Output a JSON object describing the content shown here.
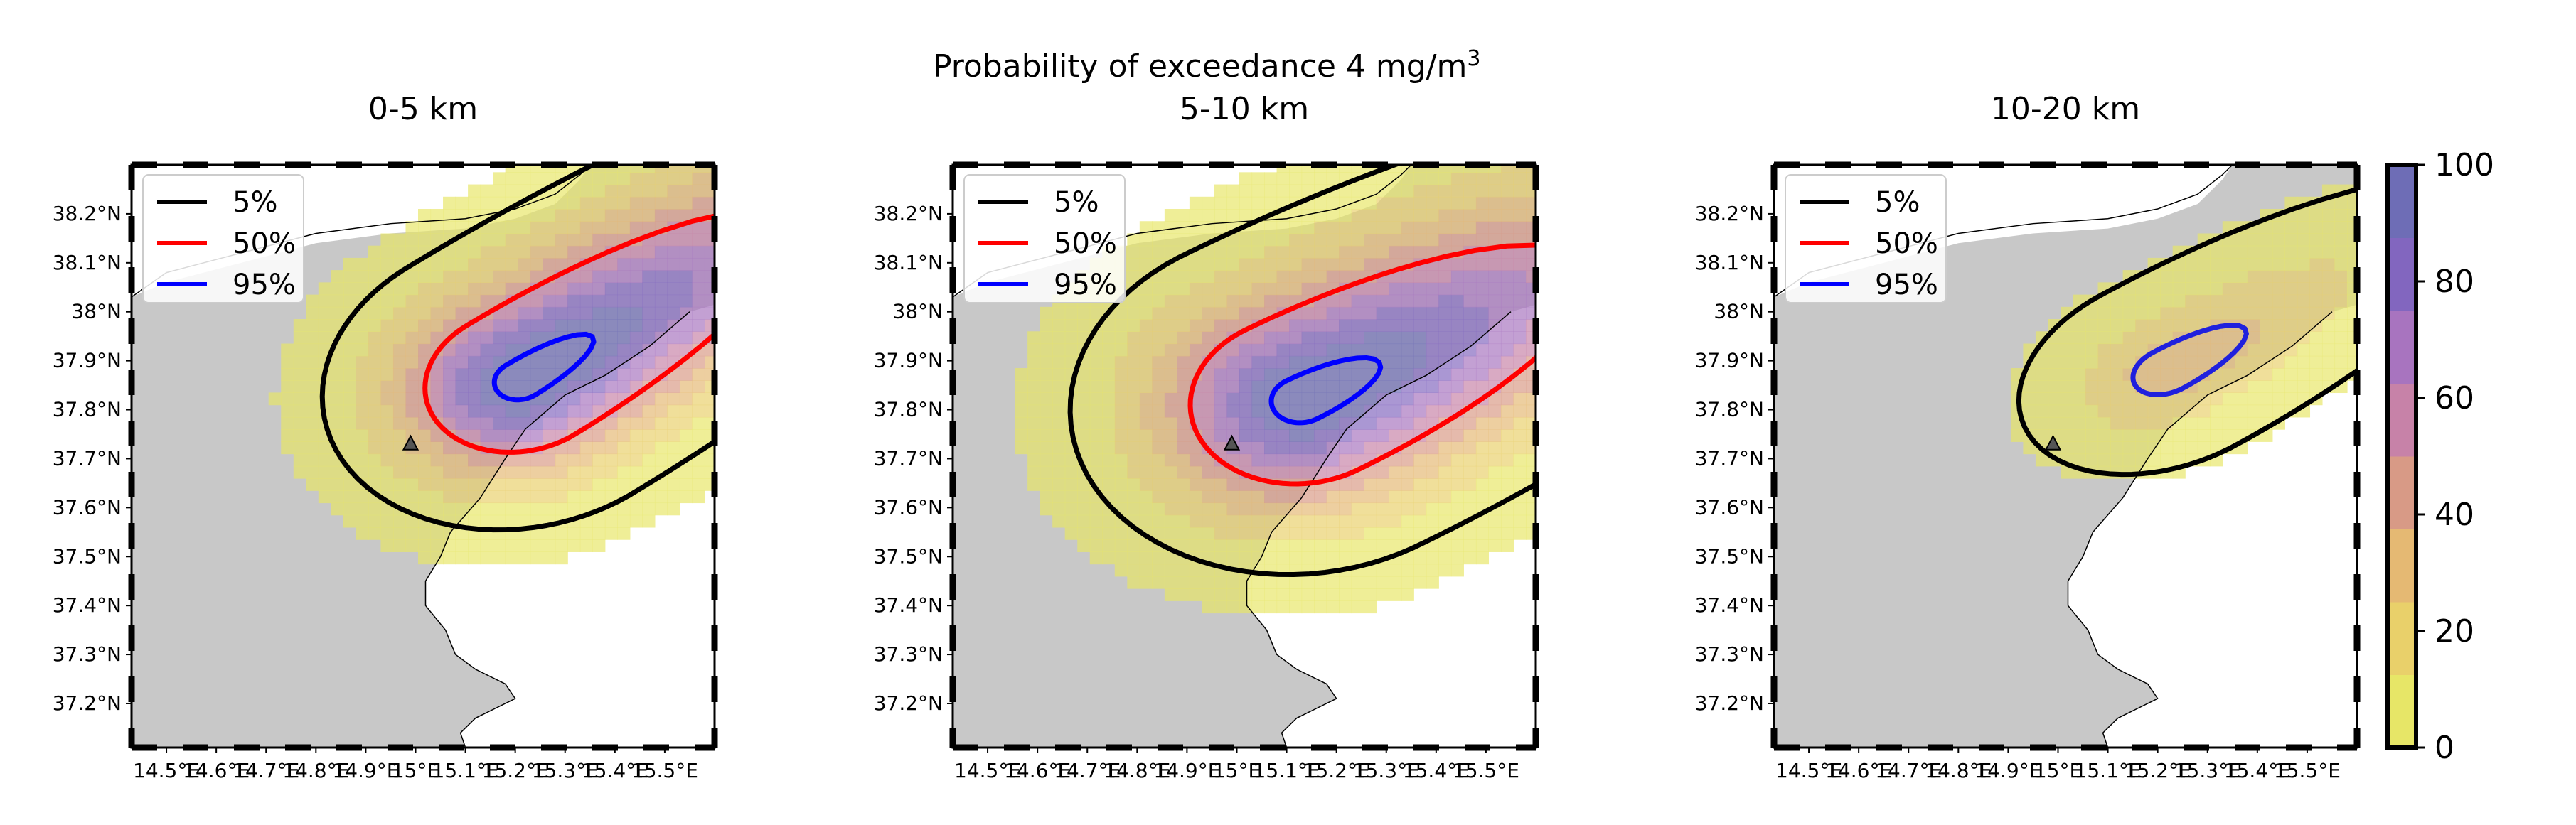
{
  "figure": {
    "suptitle_main": "Probability of exceedance 4 mg/m",
    "suptitle_sup": "3"
  },
  "colorbar": {
    "ticks": [
      "0",
      "20",
      "40",
      "60",
      "80",
      "100"
    ],
    "range": [
      0,
      100
    ],
    "colors": [
      "#e7e667",
      "#e9d06a",
      "#e5b973",
      "#d89a86",
      "#c782a8",
      "#a874bf",
      "#8266bf",
      "#6e6db6"
    ]
  },
  "legend": [
    "5%",
    "50%",
    "95%"
  ],
  "legend_colors": [
    "#000000",
    "#ff0000",
    "#0000ff"
  ],
  "lat_ticks": [
    "38.2°N",
    "38.1°N",
    "38°N",
    "37.9°N",
    "37.8°N",
    "37.7°N",
    "37.6°N",
    "37.5°N",
    "37.4°N",
    "37.3°N",
    "37.2°N"
  ],
  "lon_ticks": [
    "14.5°E",
    "14.6°E",
    "14.7°E",
    "14.8°E",
    "14.9°E",
    "15°E",
    "15.1°E",
    "15.2°E",
    "15.3°E",
    "15.4°E",
    "15.5°E"
  ],
  "land_color": "#c8c8c8",
  "vent_marker": "triangle-icon",
  "chart_data": [
    {
      "type": "heatmap",
      "title": "0-5 km",
      "xlim": [
        14.43,
        15.6
      ],
      "ylim": [
        37.11,
        38.3
      ],
      "vent": [
        14.99,
        37.73
      ],
      "field": {
        "center": [
          15.21,
          37.86
        ],
        "axis_deg": 38,
        "radius_along_back": 0.28,
        "radius_along_front": 0.95,
        "radius_across": 0.25,
        "peak": 100
      },
      "contours": [
        {
          "level": "5%",
          "color": "#000000"
        },
        {
          "level": "50%",
          "color": "#ff0000"
        },
        {
          "level": "95%",
          "color": "#0000ff"
        }
      ]
    },
    {
      "type": "heatmap",
      "title": "5-10 km",
      "xlim": [
        14.43,
        15.6
      ],
      "ylim": [
        37.11,
        38.3
      ],
      "vent": [
        14.99,
        37.73
      ],
      "field": {
        "center": [
          15.13,
          37.82
        ],
        "axis_deg": 32,
        "radius_along_back": 0.32,
        "radius_along_front": 0.95,
        "radius_across": 0.3,
        "peak": 100
      },
      "contours": [
        {
          "level": "5%",
          "color": "#000000"
        },
        {
          "level": "50%",
          "color": "#ff0000"
        },
        {
          "level": "95%",
          "color": "#0000ff"
        }
      ]
    },
    {
      "type": "heatmap",
      "title": "10-20 km",
      "xlim": [
        14.43,
        15.6
      ],
      "ylim": [
        37.11,
        38.3
      ],
      "vent": [
        14.99,
        37.73
      ],
      "field": {
        "center": [
          15.22,
          37.88
        ],
        "axis_deg": 35,
        "radius_along_back": 0.22,
        "radius_along_front": 0.55,
        "radius_across": 0.16,
        "peak": 31
      },
      "contours": [
        {
          "level": "5%",
          "color": "#000000"
        },
        {
          "level": "95%",
          "color": "#2020dd"
        }
      ]
    }
  ]
}
